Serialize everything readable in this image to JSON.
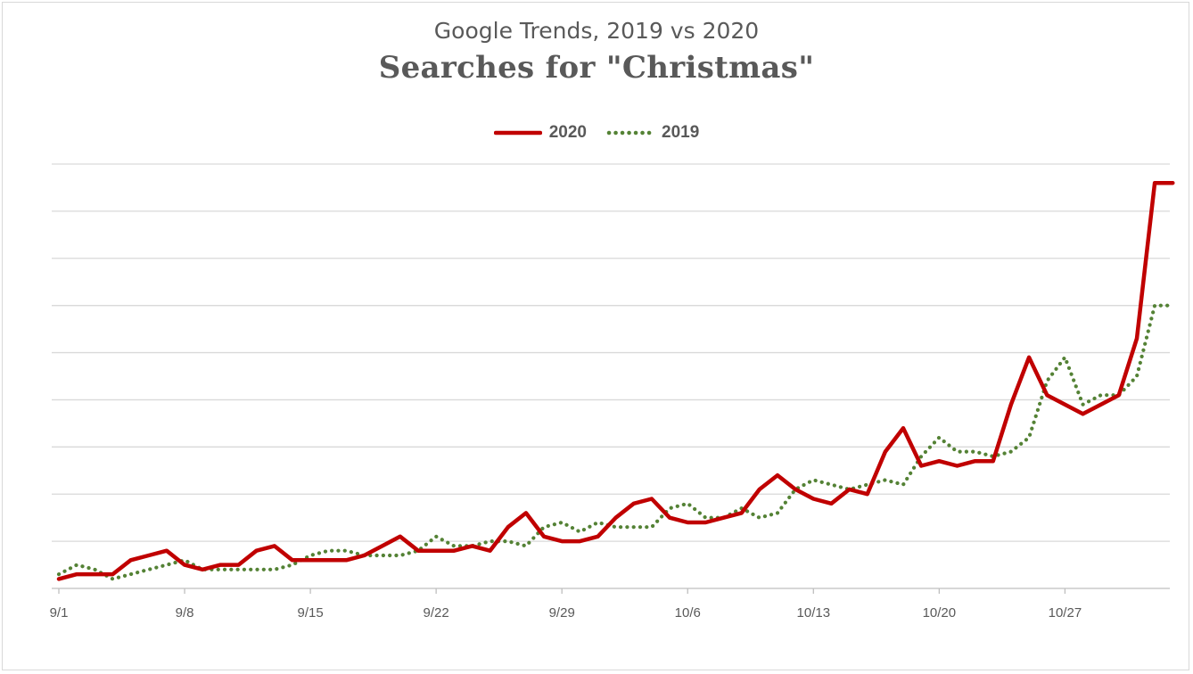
{
  "chart_data": {
    "type": "line",
    "subtitle": "Google Trends, 2019 vs 2020",
    "title": "Searches for \"Christmas\"",
    "legend_position": "top-center",
    "grid": true,
    "ylim": [
      0,
      90
    ],
    "x": [
      "9/1",
      "9/2",
      "9/3",
      "9/4",
      "9/5",
      "9/6",
      "9/7",
      "9/8",
      "9/9",
      "9/10",
      "9/11",
      "9/12",
      "9/13",
      "9/14",
      "9/15",
      "9/16",
      "9/17",
      "9/18",
      "9/19",
      "9/20",
      "9/21",
      "9/22",
      "9/23",
      "9/24",
      "9/25",
      "9/26",
      "9/27",
      "9/28",
      "9/29",
      "9/30",
      "10/1",
      "10/2",
      "10/3",
      "10/4",
      "10/5",
      "10/6",
      "10/7",
      "10/8",
      "10/9",
      "10/10",
      "10/11",
      "10/12",
      "10/13",
      "10/14",
      "10/15",
      "10/16",
      "10/17",
      "10/18",
      "10/19",
      "10/20",
      "10/21",
      "10/22",
      "10/23",
      "10/24",
      "10/25",
      "10/26",
      "10/27",
      "10/28",
      "10/29",
      "10/30",
      "10/31",
      "11/1",
      "11/2"
    ],
    "x_tick_labels": [
      "9/1",
      "9/8",
      "9/15",
      "9/22",
      "9/29",
      "10/6",
      "10/13",
      "10/20",
      "10/27"
    ],
    "series": [
      {
        "name": "2020",
        "color": "#c00000",
        "style": "solid",
        "values": [
          2,
          3,
          3,
          3,
          6,
          7,
          8,
          5,
          4,
          5,
          5,
          8,
          9,
          6,
          6,
          6,
          6,
          7,
          9,
          11,
          8,
          8,
          8,
          9,
          8,
          13,
          16,
          11,
          10,
          10,
          11,
          15,
          18,
          19,
          15,
          14,
          14,
          15,
          16,
          21,
          24,
          21,
          19,
          18,
          21,
          20,
          29,
          34,
          26,
          27,
          26,
          27,
          27,
          39,
          49,
          41,
          39,
          37,
          39,
          41,
          53,
          86,
          86
        ]
      },
      {
        "name": "2019",
        "color": "#548235",
        "style": "dotted",
        "values": [
          3,
          5,
          4,
          2,
          3,
          4,
          5,
          6,
          4,
          4,
          4,
          4,
          4,
          5,
          7,
          8,
          8,
          7,
          7,
          7,
          8,
          11,
          9,
          9,
          10,
          10,
          9,
          13,
          14,
          12,
          14,
          13,
          13,
          13,
          17,
          18,
          15,
          15,
          17,
          15,
          16,
          21,
          23,
          22,
          21,
          22,
          23,
          22,
          28,
          32,
          29,
          29,
          28,
          29,
          32,
          44,
          49,
          39,
          41,
          41,
          45,
          60,
          60
        ]
      }
    ]
  }
}
